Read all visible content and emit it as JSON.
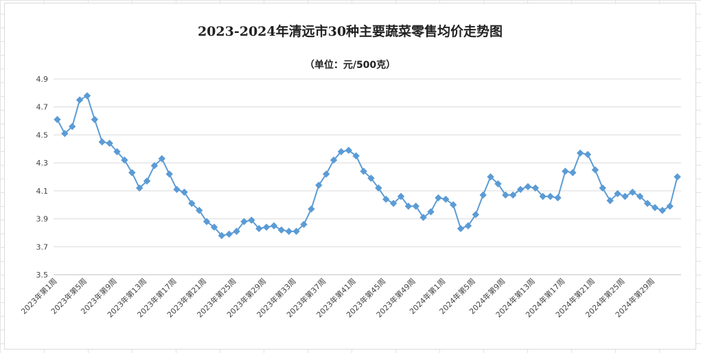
{
  "chart_data": {
    "type": "line",
    "title": "2023-2024年清远市30种主要蔬菜零售均价走势图",
    "subtitle": "（单位：元/500克）",
    "xlabel": "",
    "ylabel": "",
    "ylim": [
      3.5,
      4.9
    ],
    "yticks": [
      3.5,
      3.7,
      3.9,
      4.1,
      4.3,
      4.5,
      4.7,
      4.9
    ],
    "ytick_labels": [
      "3.5",
      "3.7",
      "3.9",
      "4.1",
      "4.3",
      "4.5",
      "4.7",
      "4.9"
    ],
    "grid": true,
    "legend": "none",
    "colors": {
      "series": "#5b9bd5"
    },
    "categories": [
      "2023年第1周",
      "2023年第2周",
      "2023年第3周",
      "2023年第4周",
      "2023年第5周",
      "2023年第6周",
      "2023年第7周",
      "2023年第8周",
      "2023年第9周",
      "2023年第10周",
      "2023年第11周",
      "2023年第12周",
      "2023年第13周",
      "2023年第14周",
      "2023年第15周",
      "2023年第16周",
      "2023年第17周",
      "2023年第18周",
      "2023年第19周",
      "2023年第20周",
      "2023年第21周",
      "2023年第22周",
      "2023年第23周",
      "2023年第24周",
      "2023年第25周",
      "2023年第26周",
      "2023年第27周",
      "2023年第28周",
      "2023年第29周",
      "2023年第30周",
      "2023年第31周",
      "2023年第32周",
      "2023年第33周",
      "2023年第34周",
      "2023年第35周",
      "2023年第36周",
      "2023年第37周",
      "2023年第38周",
      "2023年第39周",
      "2023年第40周",
      "2023年第41周",
      "2023年第42周",
      "2023年第43周",
      "2023年第44周",
      "2023年第45周",
      "2023年第46周",
      "2023年第47周",
      "2023年第48周",
      "2023年第49周",
      "2023年第50周",
      "2023年第51周",
      "2023年第52周",
      "2024年第1周",
      "2024年第2周",
      "2024年第3周",
      "2024年第4周",
      "2024年第5周",
      "2024年第6周",
      "2024年第7周",
      "2024年第8周",
      "2024年第9周",
      "2024年第10周",
      "2024年第11周",
      "2024年第12周",
      "2024年第13周",
      "2024年第14周",
      "2024年第15周",
      "2024年第16周",
      "2024年第17周",
      "2024年第18周",
      "2024年第19周",
      "2024年第20周",
      "2024年第21周",
      "2024年第22周",
      "2024年第23周",
      "2024年第24周",
      "2024年第25周",
      "2024年第26周",
      "2024年第27周",
      "2024年第28周",
      "2024年第29周",
      "2024年第30周",
      "2024年第31周",
      "2024年第32周"
    ],
    "x_tick_labels": [
      "2023年第1周",
      "2023年第5周",
      "2023年第9周",
      "2023年第13周",
      "2023年第17周",
      "2023年第21周",
      "2023年第25周",
      "2023年第29周",
      "2023年第33周",
      "2023年第37周",
      "2023年第41周",
      "2023年第45周",
      "2023年第49周",
      "2024年第1周",
      "2024年第5周",
      "2024年第9周",
      "2024年第13周",
      "2024年第17周",
      "2024年第21周",
      "2024年第25周",
      "2024年第29周"
    ],
    "series": [
      {
        "values": [
          4.61,
          4.51,
          4.56,
          4.75,
          4.78,
          4.61,
          4.45,
          4.44,
          4.38,
          4.32,
          4.23,
          4.12,
          4.17,
          4.28,
          4.33,
          4.22,
          4.11,
          4.09,
          4.01,
          3.96,
          3.88,
          3.84,
          3.78,
          3.79,
          3.81,
          3.88,
          3.89,
          3.83,
          3.84,
          3.85,
          3.82,
          3.81,
          3.81,
          3.86,
          3.97,
          4.14,
          4.22,
          4.32,
          4.38,
          4.39,
          4.35,
          4.24,
          4.19,
          4.12,
          4.04,
          4.01,
          4.06,
          3.99,
          3.99,
          3.91,
          3.95,
          4.05,
          4.04,
          4.0,
          3.83,
          3.85,
          3.93,
          4.07,
          4.2,
          4.15,
          4.07,
          4.07,
          4.11,
          4.13,
          4.12,
          4.06,
          4.06,
          4.05,
          4.24,
          4.23,
          4.37,
          4.36,
          4.25,
          4.12,
          4.03,
          4.08,
          4.06,
          4.09,
          4.06,
          4.01,
          3.98,
          3.96,
          3.99,
          4.2
        ]
      }
    ]
  }
}
